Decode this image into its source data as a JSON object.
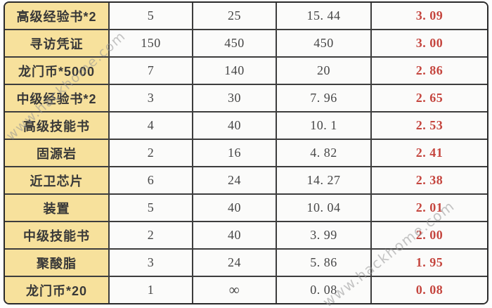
{
  "colors": {
    "item_column_bg": "#f7e19c",
    "grid_line": "#3d3d3d",
    "outer_border": "#2a2a2a",
    "cell_bg": "#fbfbfa",
    "red_value": "#c5463f",
    "item_text": "#383838",
    "number_text": "#474747"
  },
  "watermark": {
    "text": "www.hackhome.com"
  },
  "table": {
    "rows": [
      [
        "高级经验书*2",
        "5",
        "25",
        "15. 44",
        "3. 09"
      ],
      [
        "寻访凭证",
        "150",
        "450",
        "450",
        "3. 00"
      ],
      [
        "龙门币*5000",
        "7",
        "140",
        "20",
        "2. 86"
      ],
      [
        "中级经验书*2",
        "3",
        "30",
        "7. 96",
        "2. 65"
      ],
      [
        "高级技能书",
        "4",
        "40",
        "10. 1",
        "2. 53"
      ],
      [
        "固源岩",
        "2",
        "16",
        "4. 82",
        "2. 41"
      ],
      [
        "近卫芯片",
        "6",
        "24",
        "14. 27",
        "2. 38"
      ],
      [
        "装置",
        "5",
        "40",
        "10. 04",
        "2. 01"
      ],
      [
        "中级技能书",
        "2",
        "40",
        "3. 99",
        "2. 00"
      ],
      [
        "聚酸脂",
        "3",
        "24",
        "5. 86",
        "1. 95"
      ],
      [
        "龙门币*20",
        "1",
        "∞",
        "0. 08",
        "0. 08"
      ]
    ]
  },
  "chart_data": {
    "type": "table",
    "column_headers_visible": false,
    "num_columns": 5,
    "rows": [
      [
        "高级经验书*2",
        5,
        25,
        15.44,
        3.09
      ],
      [
        "寻访凭证",
        150,
        450,
        450,
        3.0
      ],
      [
        "龙门币*5000",
        7,
        140,
        20,
        2.86
      ],
      [
        "中级经验书*2",
        3,
        30,
        7.96,
        2.65
      ],
      [
        "高级技能书",
        4,
        40,
        10.1,
        2.53
      ],
      [
        "固源岩",
        2,
        16,
        4.82,
        2.41
      ],
      [
        "近卫芯片",
        6,
        24,
        14.27,
        2.38
      ],
      [
        "装置",
        5,
        40,
        10.04,
        2.01
      ],
      [
        "中级技能书",
        2,
        40,
        3.99,
        2.0
      ],
      [
        "聚酸脂",
        3,
        24,
        5.86,
        1.95
      ],
      [
        "龙门币*20",
        1,
        "∞",
        0.08,
        0.08
      ]
    ],
    "layout_hints": {
      "item_column_highlighted": true,
      "last_column_color": "#c5463f",
      "grid_on": true
    }
  }
}
